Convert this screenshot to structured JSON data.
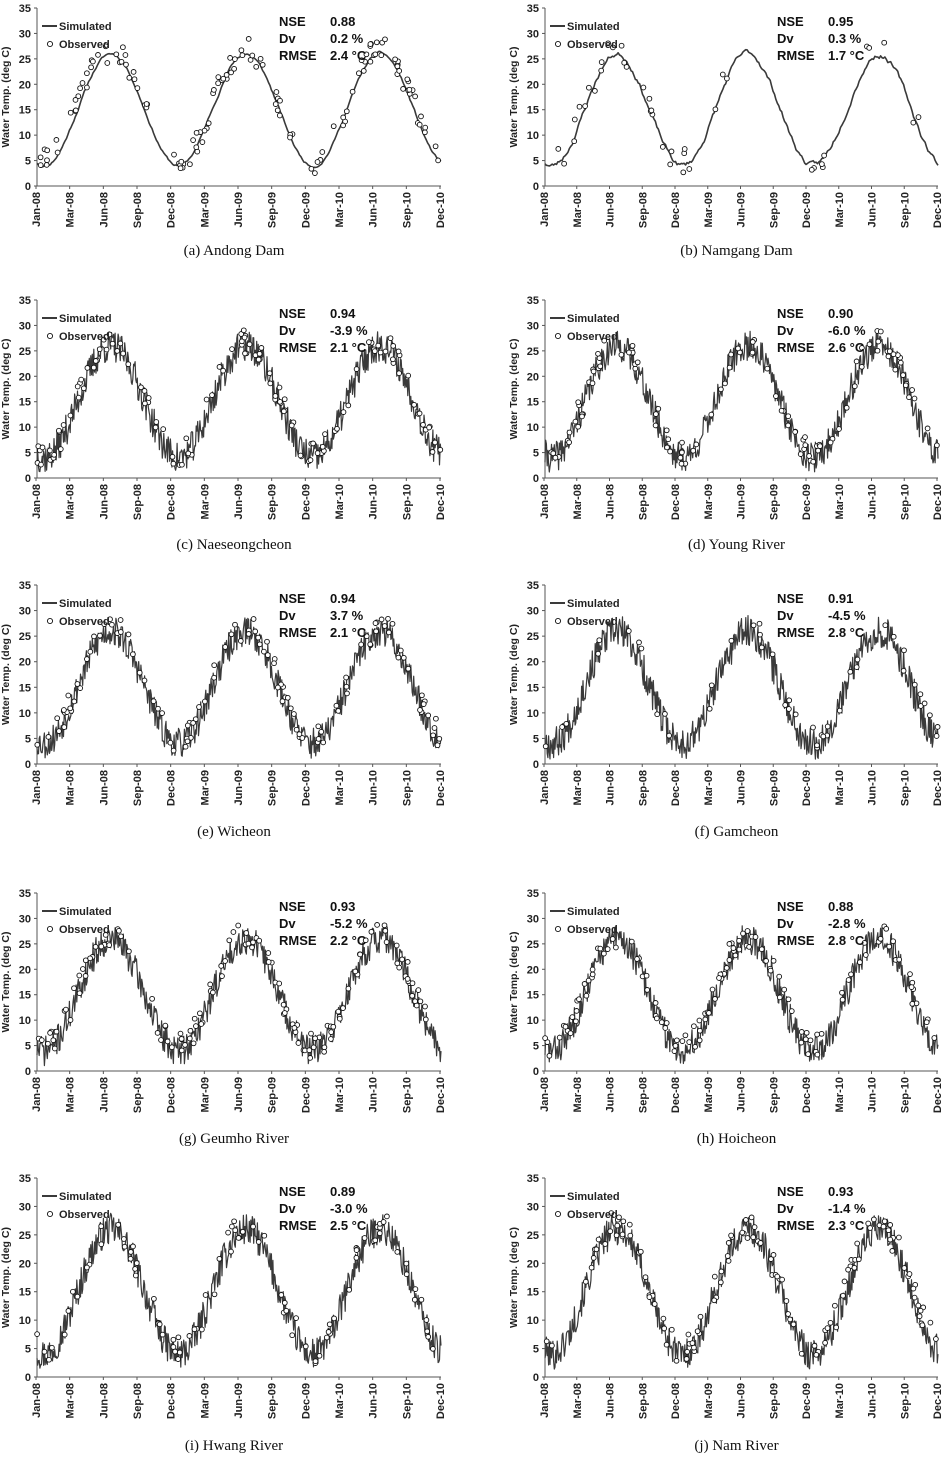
{
  "chart_data": [
    {
      "type": "line",
      "panel": "(a)",
      "caption": "(a)  Andong  Dam",
      "stats": {
        "NSE": "0.88",
        "Dv": "0.2 %",
        "RMSE": "2.4 °C"
      },
      "seed": 11,
      "noise": 0.4,
      "smooth": true,
      "obs_n": 130
    },
    {
      "type": "line",
      "panel": "(b)",
      "caption": "(b)  Namgang  Dam",
      "stats": {
        "NSE": "0.95",
        "Dv": "0.3 %",
        "RMSE": "1.7 °C"
      },
      "seed": 23,
      "noise": 0.8,
      "smooth": true,
      "obs_n": 40
    },
    {
      "type": "line",
      "panel": "(c)",
      "caption": "(c)  Naeseongcheon",
      "stats": {
        "NSE": "0.94",
        "Dv": "-3.9 %",
        "RMSE": "2.1 °C"
      },
      "seed": 37,
      "noise": 3.2,
      "smooth": false,
      "obs_n": 120
    },
    {
      "type": "line",
      "panel": "(d)",
      "caption": "(d)  Young  River",
      "stats": {
        "NSE": "0.90",
        "Dv": "-6.0 %",
        "RMSE": "2.6 °C"
      },
      "seed": 41,
      "noise": 3.0,
      "smooth": false,
      "obs_n": 110
    },
    {
      "type": "line",
      "panel": "(e)",
      "caption": "(e)  Wicheon",
      "stats": {
        "NSE": "0.94",
        "Dv": "3.7 %",
        "RMSE": "2.1 °C"
      },
      "seed": 53,
      "noise": 3.0,
      "smooth": false,
      "obs_n": 110
    },
    {
      "type": "line",
      "panel": "(f)",
      "caption": "(f)  Gamcheon",
      "stats": {
        "NSE": "0.91",
        "Dv": "-4.5 %",
        "RMSE": "2.8 °C"
      },
      "seed": 67,
      "noise": 3.2,
      "smooth": false,
      "obs_n": 45
    },
    {
      "type": "line",
      "panel": "(g)",
      "caption": "(g)  Geumho  River",
      "stats": {
        "NSE": "0.93",
        "Dv": "-5.2 %",
        "RMSE": "2.2 °C"
      },
      "seed": 71,
      "noise": 3.0,
      "smooth": false,
      "obs_n": 130
    },
    {
      "type": "line",
      "panel": "(h)",
      "caption": "(h)  Hoicheon",
      "stats": {
        "NSE": "0.88",
        "Dv": "-2.8 %",
        "RMSE": "2.8 °C"
      },
      "seed": 83,
      "noise": 3.0,
      "smooth": false,
      "obs_n": 120
    },
    {
      "type": "line",
      "panel": "(i)",
      "caption": "(i)  Hwang  River",
      "stats": {
        "NSE": "0.89",
        "Dv": "-3.0 %",
        "RMSE": "2.5 °C"
      },
      "seed": 97,
      "noise": 2.8,
      "smooth": false,
      "obs_n": 90
    },
    {
      "type": "line",
      "panel": "(j)",
      "caption": "(j)  Nam  River",
      "stats": {
        "NSE": "0.93",
        "Dv": "-1.4 %",
        "RMSE": "2.3 °C"
      },
      "seed": 101,
      "noise": 2.8,
      "smooth": false,
      "obs_n": 120
    }
  ],
  "shared": {
    "ylabel": "Water  Temp. (deg C)",
    "ylim": [
      0,
      35
    ],
    "yticks": [
      "0",
      "5",
      "10",
      "15",
      "20",
      "25",
      "30",
      "35"
    ],
    "xticks": [
      "Jan-08",
      "Mar-08",
      "Jun-08",
      "Sep-08",
      "Dec-08",
      "Mar-09",
      "Jun-09",
      "Sep-09",
      "Dec-09",
      "Mar-10",
      "Jun-10",
      "Sep-10",
      "Dec-10"
    ],
    "legend": {
      "simulated": "Simulated",
      "observed": "Observed"
    },
    "stat_labels": {
      "nse": "NSE",
      "dv": "Dv",
      "rmse": "RMSE"
    },
    "colors": {
      "line": "#3a3a3a",
      "axis": "#555555",
      "text": "#222222"
    }
  }
}
